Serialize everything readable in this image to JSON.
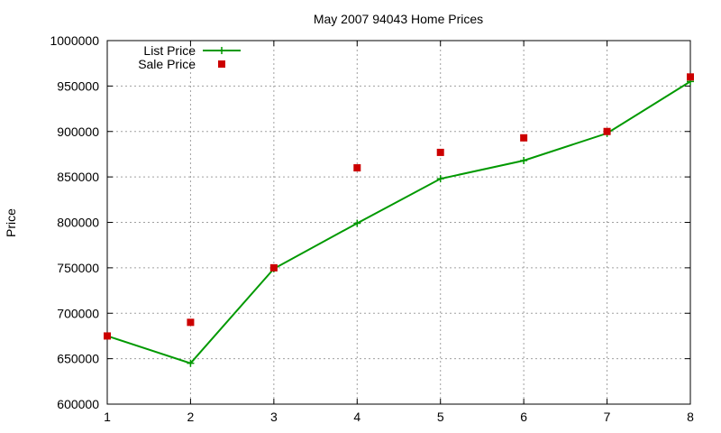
{
  "chart_data": {
    "type": "line",
    "title": "May 2007 94043 Home Prices",
    "xlabel": "",
    "ylabel": "Price",
    "xlim": [
      1,
      8
    ],
    "ylim": [
      600000,
      1000000
    ],
    "x_ticks": [
      "1",
      "2",
      "3",
      "4",
      "5",
      "6",
      "7",
      "8"
    ],
    "y_ticks": [
      "600000",
      "650000",
      "700000",
      "750000",
      "800000",
      "850000",
      "900000",
      "950000",
      "1000000"
    ],
    "grid": true,
    "legend_position": "top-left",
    "series": [
      {
        "name": "List Price",
        "kind": "line-with-plus-markers",
        "color": "#009900",
        "x": [
          1,
          2,
          3,
          4,
          5,
          6,
          7,
          8
        ],
        "values": [
          675000,
          645000,
          749000,
          799000,
          848000,
          868000,
          898000,
          955000
        ]
      },
      {
        "name": "Sale Price",
        "kind": "square-points",
        "color": "#cc0000",
        "x": [
          1,
          2,
          3,
          4,
          5,
          6,
          7,
          8
        ],
        "values": [
          675000,
          690000,
          750000,
          860000,
          877000,
          893000,
          900000,
          960000
        ]
      }
    ]
  }
}
